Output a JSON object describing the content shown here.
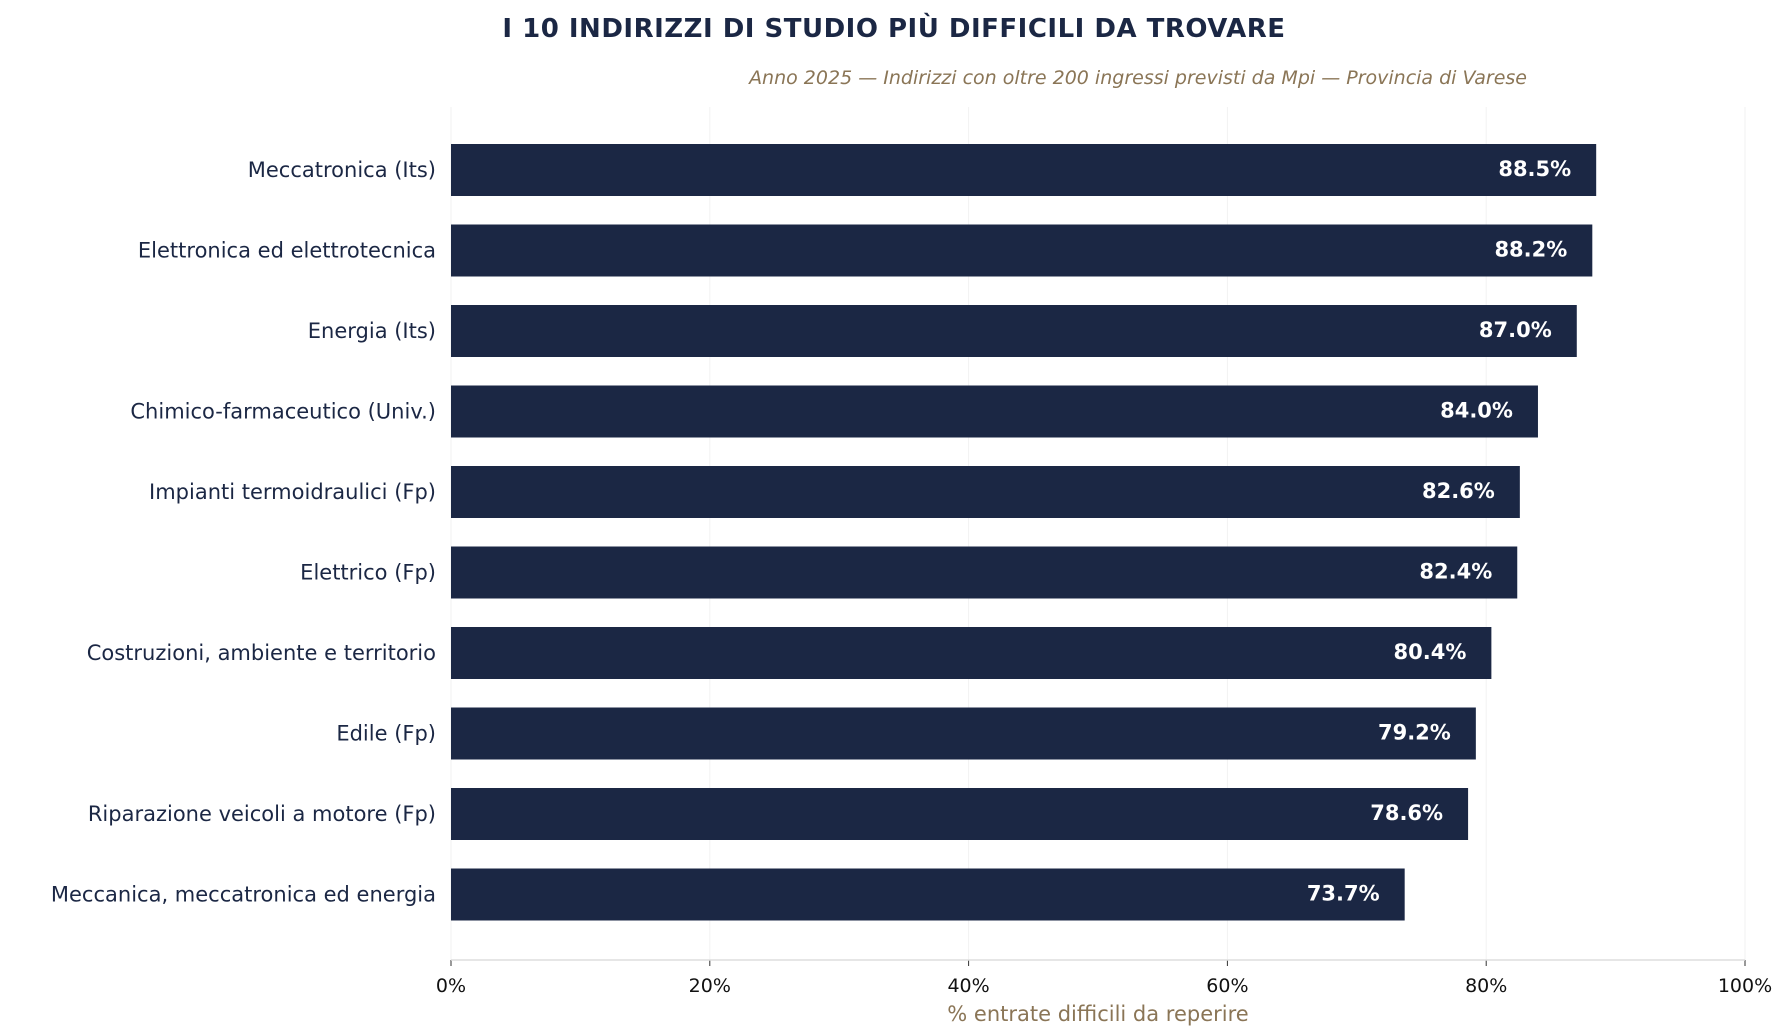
{
  "chart_data": {
    "type": "bar",
    "orientation": "horizontal",
    "title": "I 10 INDIRIZZI DI STUDIO PIÙ DIFFICILI DA TROVARE",
    "subtitle": "Anno 2025 — Indirizzi con oltre 200 ingressi previsti da Mpi — Provincia di Varese",
    "xlabel": "% entrate difficili da reperire",
    "ylabel": "",
    "xlim": [
      0,
      100
    ],
    "xticks": [
      0,
      20,
      40,
      60,
      80,
      100
    ],
    "xtick_labels": [
      "0%",
      "20%",
      "40%",
      "60%",
      "80%",
      "100%"
    ],
    "grid": "vertical, faint",
    "categories": [
      "Meccatronica (Its)",
      "Elettronica ed elettrotecnica",
      "Energia (Its)",
      "Chimico-farmaceutico (Univ.)",
      "Impianti termoidraulici (Fp)",
      "Elettrico (Fp)",
      "Costruzioni, ambiente e territorio",
      "Edile (Fp)",
      "Riparazione veicoli a motore (Fp)",
      "Meccanica, meccatronica ed energia"
    ],
    "values": [
      88.5,
      88.2,
      87.0,
      84.0,
      82.6,
      82.4,
      80.4,
      79.2,
      78.6,
      73.7
    ],
    "value_labels": [
      "88.5%",
      "88.2%",
      "87.0%",
      "84.0%",
      "82.6%",
      "82.4%",
      "80.4%",
      "79.2%",
      "78.6%",
      "73.7%"
    ],
    "colors": {
      "bar": "#1b2744",
      "title": "#1b2744",
      "subtitle": "#8a7556",
      "value_label": "#ffffff"
    }
  }
}
